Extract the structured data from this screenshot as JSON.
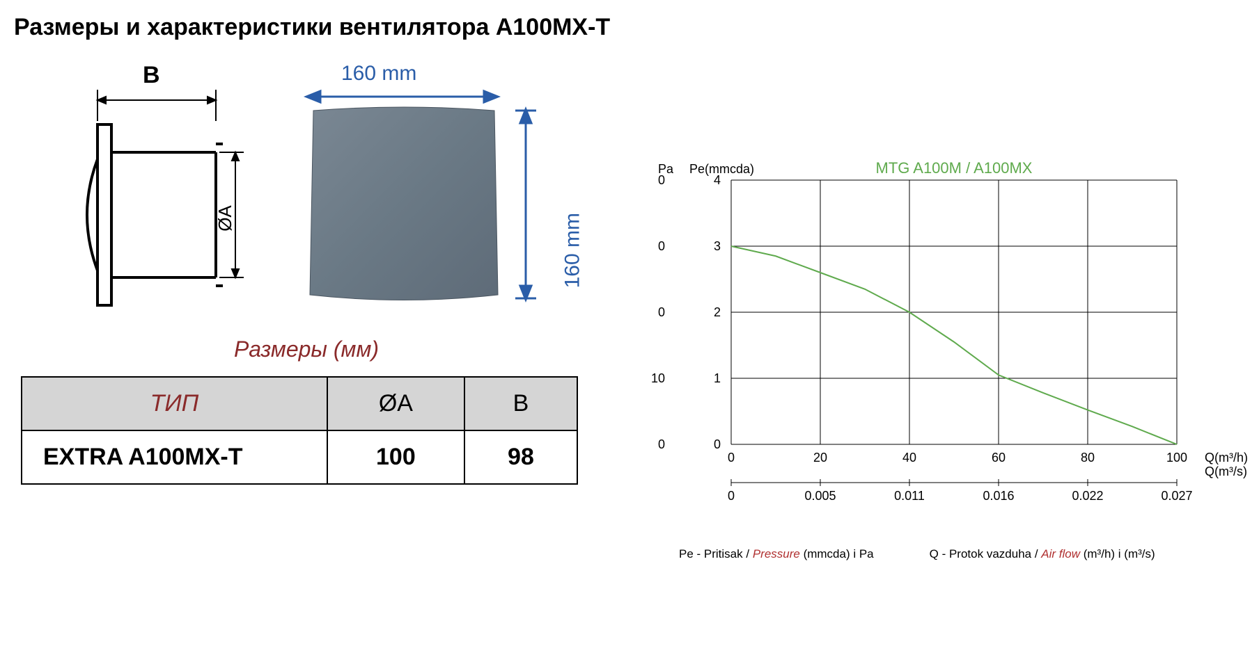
{
  "title": "Размеры и характеристики вентилятора А100МХ-Т",
  "schematic": {
    "label_B": "B",
    "label_OA": "ØA",
    "stroke": "#000000",
    "stroke_width": 3
  },
  "photo": {
    "width_label": "160 mm",
    "height_label": "160 mm",
    "dim_color": "#2a5da8",
    "panel_fill": "#6a7985",
    "panel_highlight": "#7f8c99"
  },
  "subtitle": "Размеры (мм)",
  "subtitle_color": "#8a2a2a",
  "table": {
    "header_bg": "#d5d5d5",
    "type_header_color": "#8a2a2a",
    "columns": [
      "ТИП",
      "ØA",
      "B"
    ],
    "rows": [
      [
        "EXTRA A100MX-T",
        "100",
        "98"
      ]
    ]
  },
  "chart": {
    "title": "MTG A100M / A100MX",
    "title_color": "#5faa4d",
    "line_color": "#5faa4d",
    "line_width": 2,
    "grid_color": "#000000",
    "grid_width": 1,
    "bg": "#ffffff",
    "pa_label": "Pa",
    "pe_label": "Pe(mmcda)",
    "q_label_1": "Q(m³/h)",
    "q_label_2": "Q(m³/s)",
    "pa_ticks": [
      "0",
      "0",
      "0",
      "10",
      "0"
    ],
    "pe_ticks": [
      "4",
      "3",
      "2",
      "1",
      "0"
    ],
    "x1_ticks": [
      "0",
      "20",
      "40",
      "60",
      "80",
      "100"
    ],
    "x2_ticks": [
      "0",
      "0.005",
      "0.011",
      "0.016",
      "0.022",
      "0.027"
    ],
    "x_range": [
      0,
      100
    ],
    "y_range": [
      0,
      4
    ],
    "curve": [
      {
        "x": 0,
        "y": 3.0
      },
      {
        "x": 10,
        "y": 2.85
      },
      {
        "x": 20,
        "y": 2.6
      },
      {
        "x": 30,
        "y": 2.35
      },
      {
        "x": 40,
        "y": 2.0
      },
      {
        "x": 50,
        "y": 1.55
      },
      {
        "x": 60,
        "y": 1.05
      },
      {
        "x": 70,
        "y": 0.78
      },
      {
        "x": 80,
        "y": 0.52
      },
      {
        "x": 90,
        "y": 0.27
      },
      {
        "x": 100,
        "y": 0.0
      }
    ]
  },
  "legend": {
    "pe_prefix": "Pe - Pritisak / ",
    "pe_red": "Pressure",
    "pe_suffix": " (mmcda) i Pa",
    "q_prefix": "Q - Protok vazduha / ",
    "q_red": "Air flow",
    "q_suffix": " (m³/h) i (m³/s)",
    "red_color": "#b03030"
  }
}
